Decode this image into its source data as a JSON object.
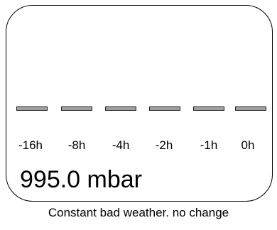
{
  "barometer": {
    "history_labels": [
      "-16h",
      "-8h",
      "-4h",
      "-2h",
      "-1h",
      "0h"
    ],
    "trend_levels": [
      0,
      0,
      0,
      0,
      0,
      0
    ],
    "pressure": "995.0 mbar",
    "forecast": "Constant bad weather. no change",
    "bar_fill_color": "#a0a0a0",
    "bar_border_color": "#1e1e1e"
  }
}
